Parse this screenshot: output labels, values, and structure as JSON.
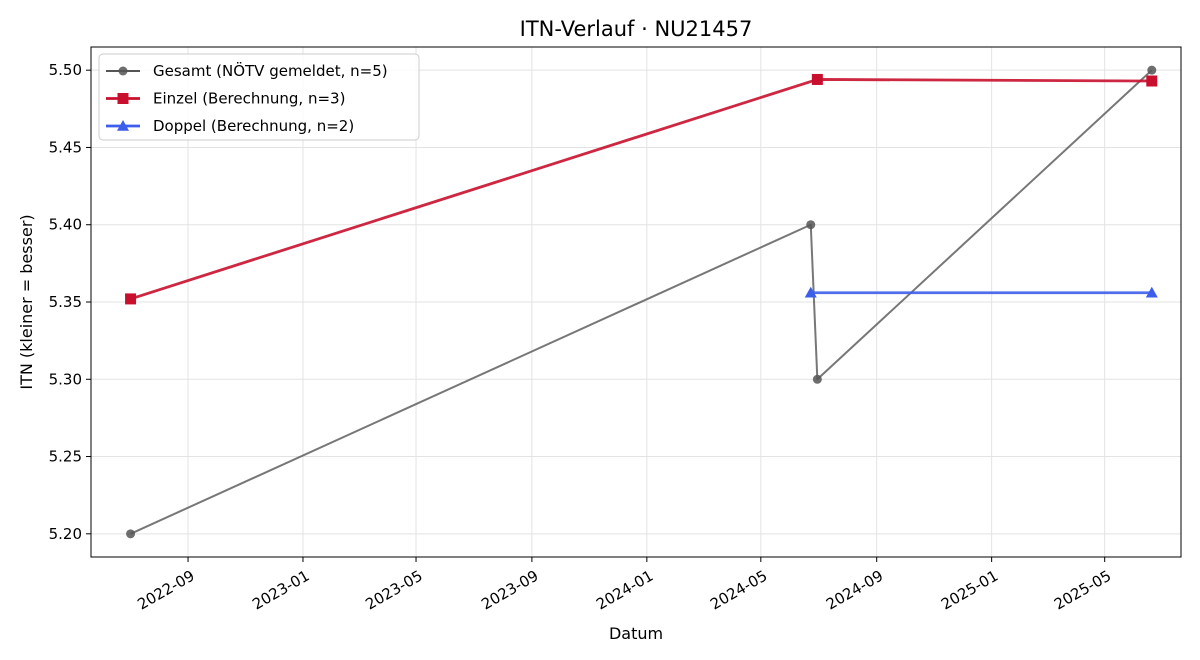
{
  "chart_data": {
    "type": "line",
    "title": "ITN-Verlauf · NU21457",
    "xlabel": "Datum",
    "ylabel": "ITN  (kleiner = besser)",
    "x_axis_type": "date",
    "xlim": [
      "2022-05-21",
      "2025-07-21"
    ],
    "ylim": [
      5.185,
      5.515
    ],
    "x_ticks": [
      {
        "date": "2022-09-01",
        "label": "2022-09"
      },
      {
        "date": "2023-01-01",
        "label": "2023-01"
      },
      {
        "date": "2023-05-01",
        "label": "2023-05"
      },
      {
        "date": "2023-09-01",
        "label": "2023-09"
      },
      {
        "date": "2024-01-01",
        "label": "2024-01"
      },
      {
        "date": "2024-05-01",
        "label": "2024-05"
      },
      {
        "date": "2024-09-01",
        "label": "2024-09"
      },
      {
        "date": "2025-01-01",
        "label": "2025-01"
      },
      {
        "date": "2025-05-01",
        "label": "2025-05"
      }
    ],
    "y_ticks": [
      {
        "value": 5.2,
        "label": "5.20"
      },
      {
        "value": 5.25,
        "label": "5.25"
      },
      {
        "value": 5.3,
        "label": "5.30"
      },
      {
        "value": 5.35,
        "label": "5.35"
      },
      {
        "value": 5.4,
        "label": "5.40"
      },
      {
        "value": 5.45,
        "label": "5.45"
      },
      {
        "value": 5.5,
        "label": "5.50"
      }
    ],
    "grid": true,
    "legend_position": "top-left",
    "series": [
      {
        "name": "Gesamt (NÖTV gemeldet, n=5)",
        "color": "#555555",
        "marker": "circle",
        "points": [
          {
            "x": "2022-07-02",
            "y": 5.2
          },
          {
            "x": "2024-06-23",
            "y": 5.4
          },
          {
            "x": "2024-06-30",
            "y": 5.3
          },
          {
            "x": "2025-06-20",
            "y": 5.5
          }
        ]
      },
      {
        "name": "Einzel (Berechnung, n=3)",
        "color": "#c8102e",
        "marker": "square",
        "points": [
          {
            "x": "2022-07-02",
            "y": 5.352
          },
          {
            "x": "2024-06-30",
            "y": 5.494
          },
          {
            "x": "2025-06-20",
            "y": 5.493
          }
        ]
      },
      {
        "name": "Doppel (Berechnung, n=2)",
        "color": "#3d5eea",
        "marker": "triangle",
        "points": [
          {
            "x": "2024-06-23",
            "y": 5.356
          },
          {
            "x": "2025-06-20",
            "y": 5.356
          }
        ]
      }
    ]
  }
}
